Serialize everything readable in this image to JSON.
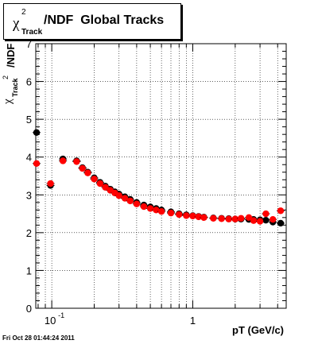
{
  "title": {
    "chi": "χ",
    "sup": "2",
    "sub": "Track",
    "rest": "/NDF  Global Tracks"
  },
  "ylabel": {
    "chi": "χ",
    "sup": "2",
    "sub": "Track",
    "rest": "/NDF"
  },
  "xlabel": "pT (GeV/c)",
  "timestamp": "Fri Oct 28 01:44:24 2011",
  "chart_data": {
    "type": "scatter",
    "xscale": "log",
    "xlim": [
      0.077,
      4.6
    ],
    "ylim": [
      0,
      7
    ],
    "grid": true,
    "yticks": [
      0,
      1,
      2,
      3,
      4,
      5,
      6,
      7
    ],
    "xtick_labels": [
      {
        "value": 0.1,
        "base": "10",
        "exp": "-1"
      },
      {
        "value": 1,
        "base": "1",
        "exp": ""
      }
    ],
    "series": [
      {
        "color": "#000000",
        "marker": "circle",
        "x": [
          0.078,
          0.098,
          0.12,
          0.15,
          0.165,
          0.18,
          0.2,
          0.22,
          0.24,
          0.26,
          0.28,
          0.3,
          0.33,
          0.36,
          0.4,
          0.45,
          0.5,
          0.55,
          0.6,
          0.7,
          0.8,
          0.9,
          1.0,
          1.1,
          1.2,
          1.4,
          1.6,
          1.8,
          2.0,
          2.2,
          2.5,
          2.7,
          3.0,
          3.3,
          3.7,
          4.2
        ],
        "y": [
          4.65,
          3.25,
          3.95,
          3.9,
          3.72,
          3.6,
          3.45,
          3.33,
          3.23,
          3.15,
          3.08,
          3.02,
          2.95,
          2.88,
          2.8,
          2.73,
          2.68,
          2.64,
          2.6,
          2.55,
          2.5,
          2.47,
          2.45,
          2.43,
          2.41,
          2.39,
          2.38,
          2.37,
          2.36,
          2.36,
          2.35,
          2.35,
          2.34,
          2.33,
          2.28,
          2.25
        ]
      },
      {
        "color": "#ff0000",
        "marker": "circle",
        "x": [
          0.078,
          0.098,
          0.12,
          0.15,
          0.165,
          0.18,
          0.2,
          0.22,
          0.24,
          0.26,
          0.28,
          0.3,
          0.33,
          0.36,
          0.4,
          0.45,
          0.5,
          0.55,
          0.6,
          0.7,
          0.8,
          0.9,
          1.0,
          1.1,
          1.2,
          1.4,
          1.6,
          1.8,
          2.0,
          2.2,
          2.5,
          2.7,
          3.0,
          3.3,
          3.7,
          4.2
        ],
        "y": [
          3.83,
          3.3,
          3.9,
          3.88,
          3.7,
          3.58,
          3.42,
          3.3,
          3.2,
          3.12,
          3.05,
          2.98,
          2.91,
          2.84,
          2.76,
          2.69,
          2.64,
          2.6,
          2.56,
          2.52,
          2.48,
          2.45,
          2.44,
          2.42,
          2.4,
          2.38,
          2.37,
          2.36,
          2.36,
          2.38,
          2.4,
          2.32,
          2.3,
          2.5,
          2.35,
          2.58
        ]
      }
    ]
  }
}
